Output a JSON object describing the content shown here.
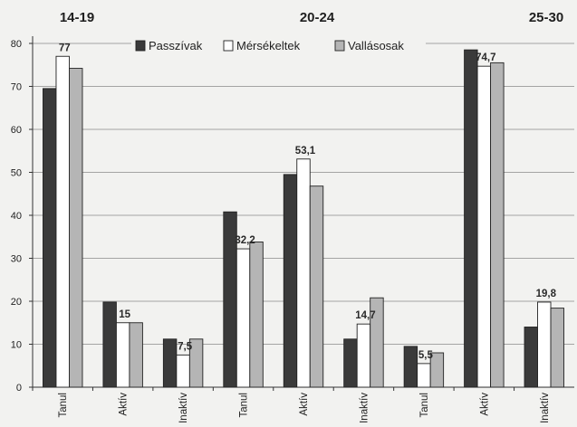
{
  "chart_data": {
    "type": "bar",
    "groups": [
      "14-19",
      "20-24",
      "25-30"
    ],
    "categories": [
      "Tanul",
      "Aktív",
      "Inaktív",
      "Tanul",
      "Aktív",
      "Inaktív",
      "Tanul",
      "Aktív",
      "Inaktív"
    ],
    "series": [
      {
        "name": "Passzívak",
        "color": "#3a3a3a",
        "values": [
          69.5,
          19.8,
          11.2,
          40.8,
          49.5,
          11.2,
          9.5,
          78.5,
          14
        ]
      },
      {
        "name": "Mérsékeltek",
        "color": "#ffffff",
        "values": [
          77,
          15,
          7.5,
          32.2,
          53.1,
          14.7,
          5.5,
          74.7,
          19.8
        ]
      },
      {
        "name": "Vallásosak",
        "color": "#b5b5b5",
        "values": [
          74.2,
          15,
          11.2,
          33.8,
          46.8,
          20.8,
          8,
          75.5,
          18.4
        ]
      }
    ],
    "data_labels": [
      "77",
      "15",
      "7,5",
      "32,2",
      "53,1",
      "14,7",
      "5,5",
      "74,7",
      "19,8"
    ],
    "y_ticks": [
      "0",
      "10",
      "20",
      "30",
      "40",
      "50",
      "60",
      "70",
      "80"
    ],
    "ylim": [
      0,
      80
    ],
    "legend_position": "top-center",
    "grid": true,
    "title": "",
    "xlabel": "",
    "ylabel": ""
  }
}
